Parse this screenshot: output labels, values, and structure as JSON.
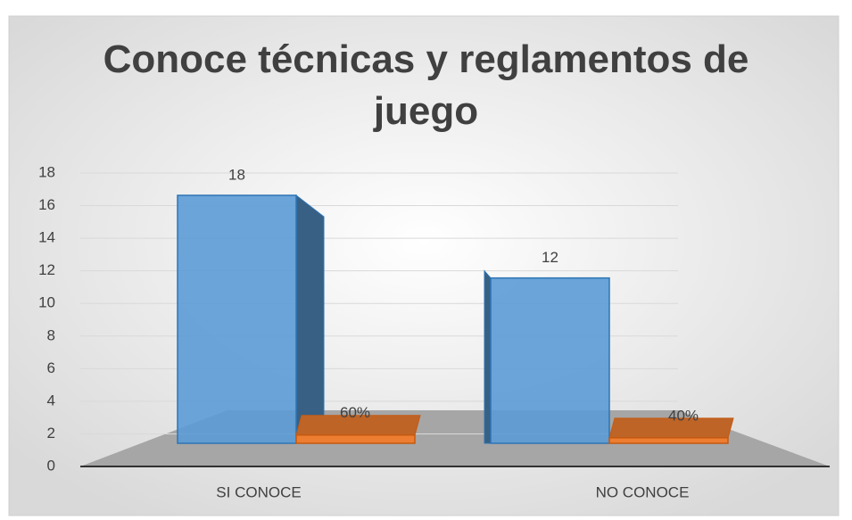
{
  "chart_data": {
    "type": "bar3d",
    "title": "Conoce técnicas y reglamentos de juego",
    "categories": [
      "SI CONOCE",
      "NO CONOCE"
    ],
    "series": [
      {
        "color": "#5b9bd5",
        "values": [
          18,
          12
        ]
      },
      {
        "color": "#ed7d31",
        "values": [
          0.6,
          0.4
        ],
        "value_labels": [
          "60%",
          "40%"
        ]
      }
    ],
    "ylim": [
      0,
      18
    ],
    "yticks": [
      0,
      2,
      4,
      6,
      8,
      10,
      12,
      14,
      16,
      18
    ],
    "grid": true
  }
}
